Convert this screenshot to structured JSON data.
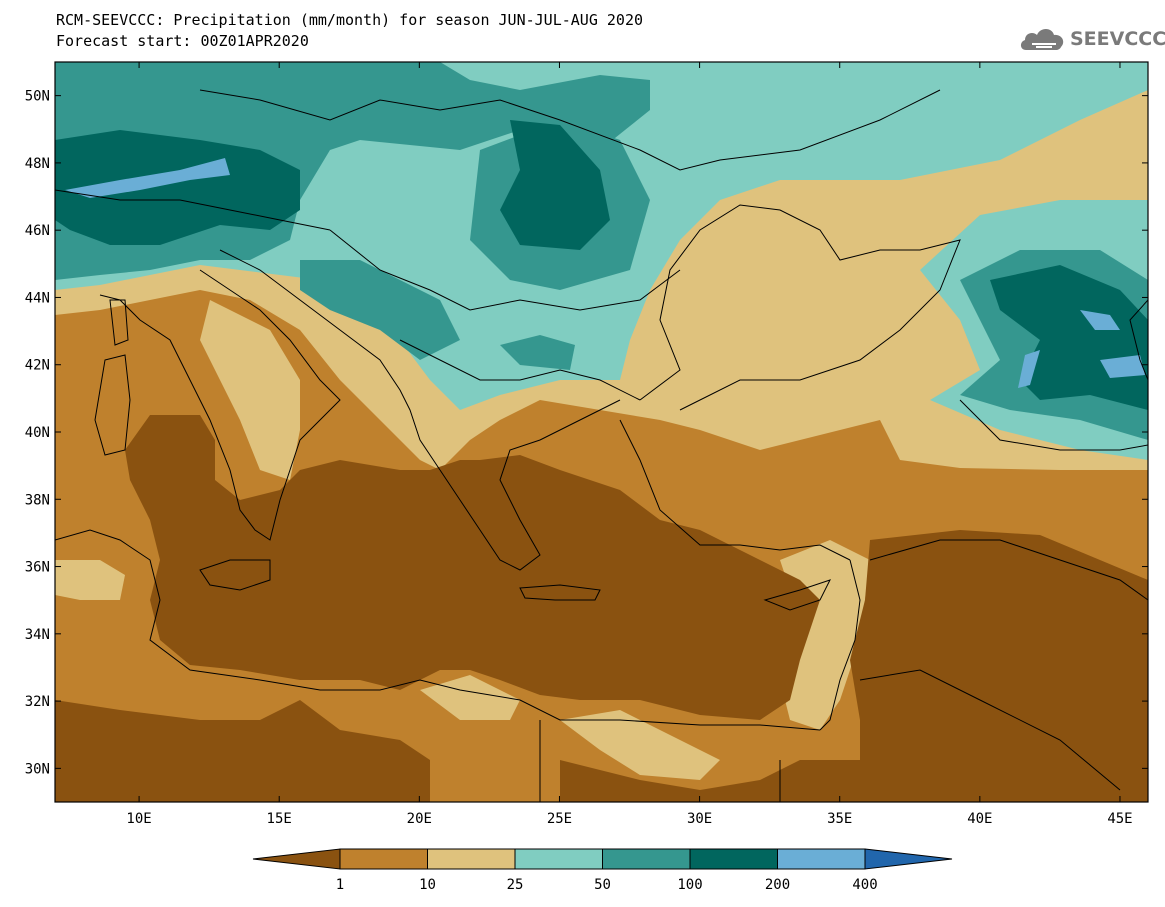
{
  "title": {
    "line1": "RCM-SEEVCCC: Precipitation (mm/month) for season JUN-JUL-AUG 2020",
    "line2": "Forecast start: 00Z01APR2020"
  },
  "logo": {
    "text": "SEEVCCC",
    "icon": "cloud-icon"
  },
  "map": {
    "lon_range": [
      7,
      46
    ],
    "lat_range": [
      29,
      51
    ],
    "lon_ticks": [
      "10E",
      "15E",
      "20E",
      "25E",
      "30E",
      "35E",
      "40E",
      "45E"
    ],
    "lat_ticks": [
      "50N",
      "48N",
      "46N",
      "44N",
      "42N",
      "40N",
      "38N",
      "36N",
      "34N",
      "32N",
      "30N"
    ],
    "field": "Precipitation (mm/month)",
    "colors": {
      "lt1": "#8a5210",
      "b1_10": "#bf812d",
      "b10_25": "#dfc27d",
      "b25_50": "#80cdc1",
      "b50_100": "#35978f",
      "b100_200": "#01665e",
      "b200_400": "#6aaed6",
      "gt400": "#2166ac"
    }
  },
  "colorbar": {
    "labels": [
      "1",
      "10",
      "25",
      "50",
      "100",
      "200",
      "400"
    ],
    "colors": [
      "#8a5210",
      "#bf812d",
      "#dfc27d",
      "#80cdc1",
      "#35978f",
      "#01665e",
      "#6aaed6",
      "#2166ac"
    ]
  }
}
